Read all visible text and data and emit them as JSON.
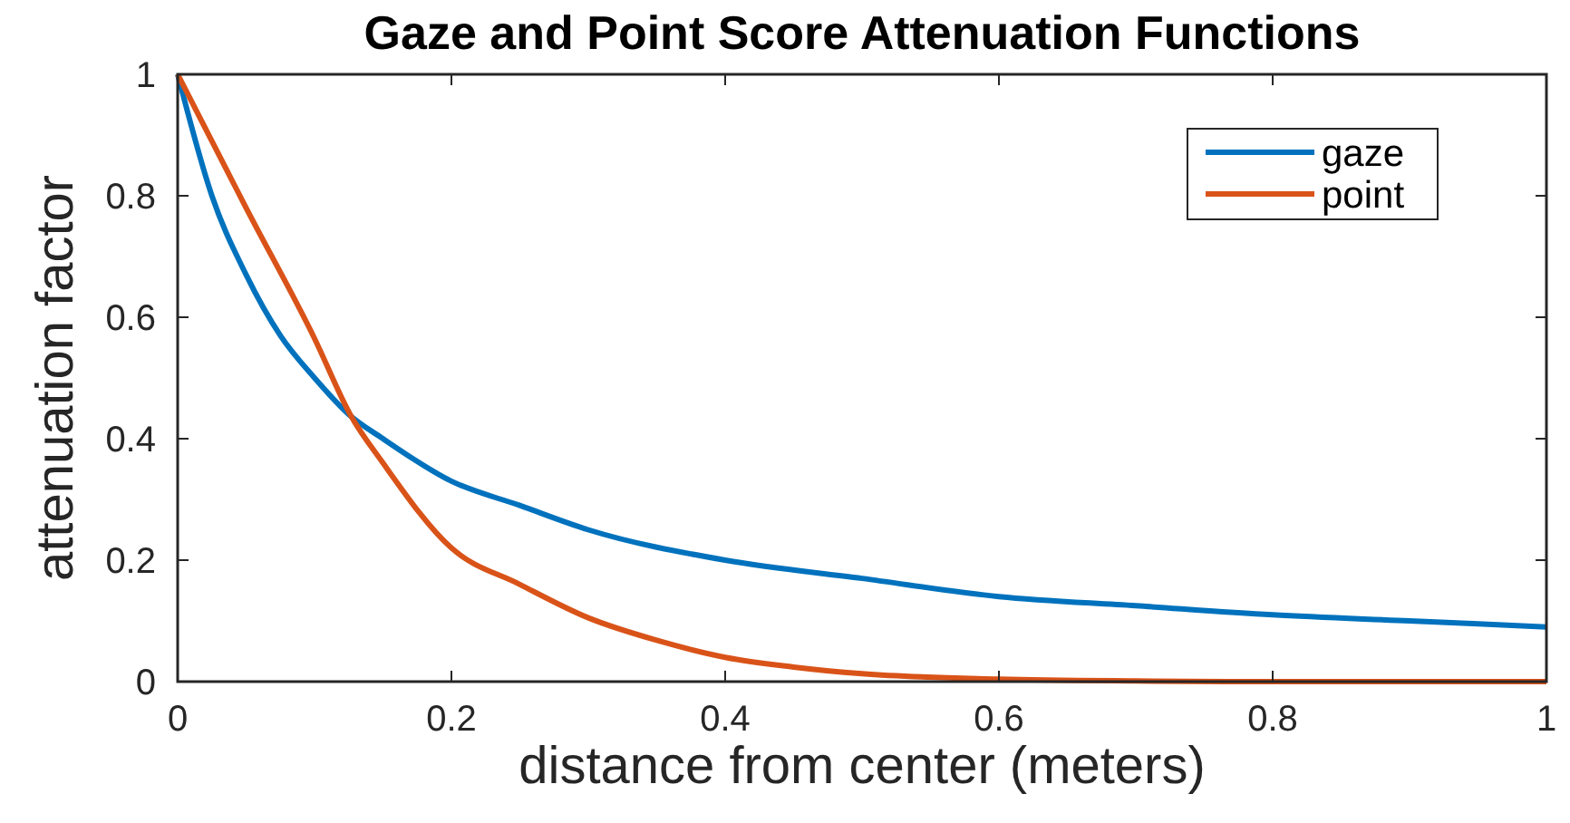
{
  "chart_data": {
    "type": "line",
    "title": "Gaze and Point Score Attenuation Functions",
    "xlabel": "distance from center (meters)",
    "ylabel": "attenuation factor",
    "xlim": [
      0,
      1
    ],
    "ylim": [
      0,
      1
    ],
    "xticks": [
      0,
      0.2,
      0.4,
      0.6,
      0.8,
      1
    ],
    "yticks": [
      0,
      0.2,
      0.4,
      0.6,
      0.8,
      1
    ],
    "legend": "top right",
    "grid": false,
    "line_style": "solid",
    "marker": "none",
    "series": [
      {
        "name": "gaze",
        "color": "#0072bd",
        "x": [
          0,
          0.025,
          0.05,
          0.075,
          0.1,
          0.125,
          0.15,
          0.2,
          0.25,
          0.3,
          0.4,
          0.5,
          0.6,
          0.7,
          0.8,
          0.9,
          1
        ],
        "values": [
          1,
          0.8,
          0.67,
          0.57,
          0.5,
          0.44,
          0.4,
          0.33,
          0.29,
          0.25,
          0.2,
          0.17,
          0.14,
          0.125,
          0.11,
          0.1,
          0.09
        ]
      },
      {
        "name": "point",
        "color": "#d95319",
        "x": [
          0,
          0.05,
          0.1,
          0.126,
          0.15,
          0.2,
          0.25,
          0.3,
          0.35,
          0.4,
          0.45,
          0.5,
          0.6,
          0.7,
          0.8,
          0.9,
          1
        ],
        "values": [
          1,
          0.78,
          0.565,
          0.44,
          0.36,
          0.22,
          0.16,
          0.105,
          0.068,
          0.04,
          0.024,
          0.013,
          0.004,
          0.001,
          0,
          0,
          0
        ]
      }
    ]
  }
}
